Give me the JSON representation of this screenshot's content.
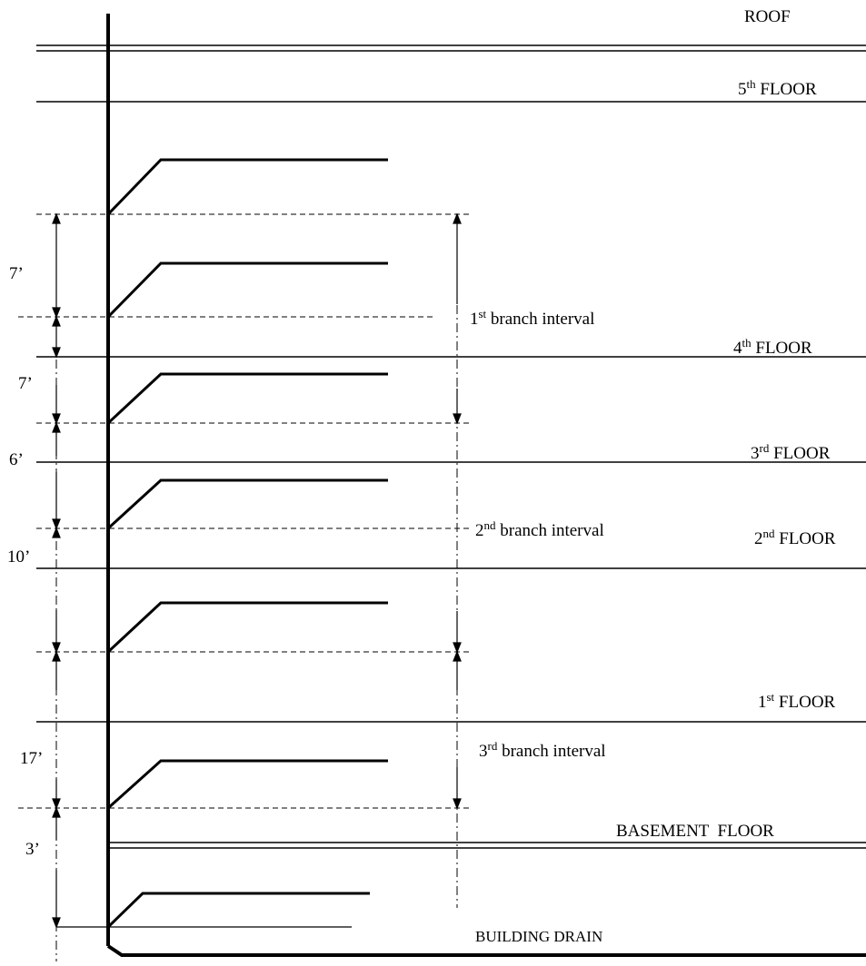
{
  "diagram": {
    "floors": {
      "roof": "ROOF",
      "fifth": {
        "num": "5",
        "sup": "th",
        "word": "FLOOR"
      },
      "fourth": {
        "num": "4",
        "sup": "th",
        "word": "FLOOR"
      },
      "third": {
        "num": "3",
        "sup": "rd",
        "word": "FLOOR"
      },
      "second": {
        "num": "2",
        "sup": "nd",
        "word": "FLOOR"
      },
      "first": {
        "num": "1",
        "sup": "st",
        "word": "FLOOR"
      },
      "basement": "BASEMENT  FLOOR",
      "building_drain": "BUILDING DRAIN"
    },
    "intervals": {
      "first": {
        "num": "1",
        "sup": "st",
        "text": "branch interval"
      },
      "second": {
        "num": "2",
        "sup": "nd",
        "text": "branch interval"
      },
      "third": {
        "num": "3",
        "sup": "rd",
        "text": "branch interval"
      }
    },
    "dimensions": {
      "d1": "7’",
      "d2": "7’",
      "d3": "6’",
      "d4": "10’",
      "d5": "17’",
      "d6": "3’"
    }
  }
}
